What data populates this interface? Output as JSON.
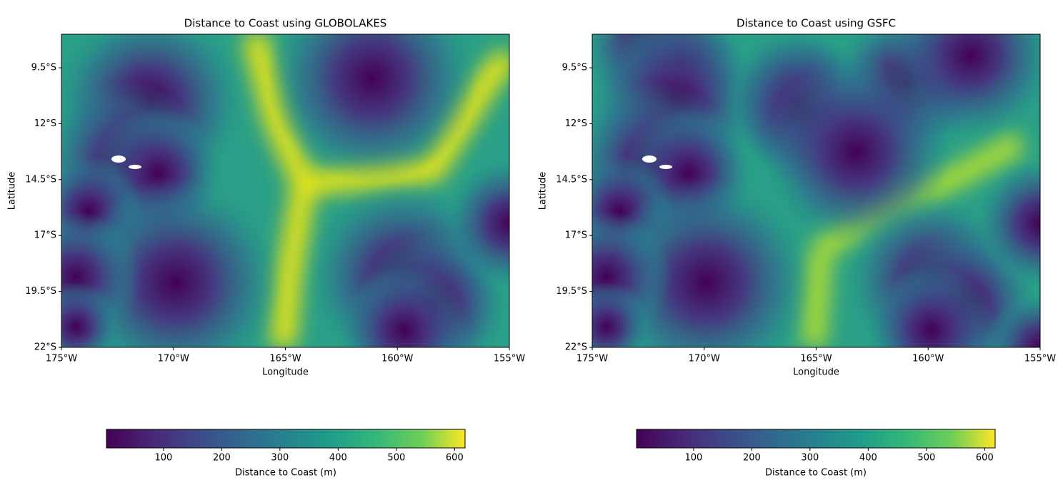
{
  "chart_data": [
    {
      "type": "heatmap",
      "title": "Distance to Coast using GLOBOLAKES",
      "xlabel": "Longitude",
      "ylabel": "Latitude",
      "xlim": [
        -175,
        -155
      ],
      "ylim": [
        -22,
        -8
      ],
      "xticks": [
        {
          "value": -175,
          "label": "175°W"
        },
        {
          "value": -170,
          "label": "170°W"
        },
        {
          "value": -165,
          "label": "165°W"
        },
        {
          "value": -160,
          "label": "160°W"
        },
        {
          "value": -155,
          "label": "155°W"
        }
      ],
      "yticks": [
        {
          "value": -9.5,
          "label": "9.5°S"
        },
        {
          "value": -12,
          "label": "12°S"
        },
        {
          "value": -14.5,
          "label": "14.5°S"
        },
        {
          "value": -17,
          "label": "17°S"
        },
        {
          "value": -19.5,
          "label": "19.5°S"
        },
        {
          "value": -22,
          "label": "22°S"
        }
      ],
      "colormap": "viridis",
      "colorbar": {
        "label": "Distance to Coast (m)",
        "lim": [
          2,
          618
        ],
        "ticks": [
          100,
          200,
          300,
          400,
          500,
          600
        ]
      }
    },
    {
      "type": "heatmap",
      "title": "Distance to Coast using GSFC",
      "xlabel": "Longitude",
      "ylabel": "Latitude",
      "xlim": [
        -175,
        -155
      ],
      "ylim": [
        -22,
        -8
      ],
      "xticks": [
        {
          "value": -175,
          "label": "175°W"
        },
        {
          "value": -170,
          "label": "170°W"
        },
        {
          "value": -165,
          "label": "165°W"
        },
        {
          "value": -160,
          "label": "160°W"
        },
        {
          "value": -155,
          "label": "155°W"
        }
      ],
      "yticks": [
        {
          "value": -9.5,
          "label": "9.5°S"
        },
        {
          "value": -12,
          "label": "12°S"
        },
        {
          "value": -14.5,
          "label": "14.5°S"
        },
        {
          "value": -17,
          "label": "17°S"
        },
        {
          "value": -19.5,
          "label": "19.5°S"
        },
        {
          "value": -22,
          "label": "22°S"
        }
      ],
      "colormap": "viridis",
      "colorbar": {
        "label": "Distance to Coast (m)",
        "lim": [
          2,
          618
        ],
        "ticks": [
          100,
          200,
          300,
          400,
          500,
          600
        ]
      }
    }
  ]
}
